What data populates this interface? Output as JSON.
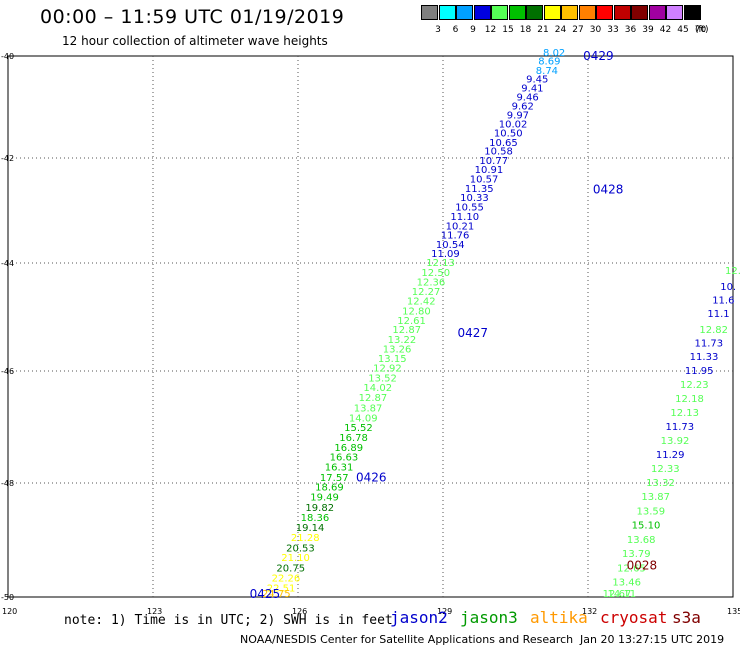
{
  "title": "00:00 – 11:59 UTC 01/19/2019",
  "subtitle": "12 hour collection of altimeter wave heights",
  "legend": {
    "unit": "(ft)",
    "bins": [
      {
        "label": "3",
        "color": "#7f7f7f"
      },
      {
        "label": "6",
        "color": "#00ffff"
      },
      {
        "label": "9",
        "color": "#00a0ff"
      },
      {
        "label": "12",
        "color": "#0000e0"
      },
      {
        "label": "15",
        "color": "#55ff55"
      },
      {
        "label": "18",
        "color": "#00c000"
      },
      {
        "label": "21",
        "color": "#007000"
      },
      {
        "label": "24",
        "color": "#ffff00"
      },
      {
        "label": "27",
        "color": "#ffc000"
      },
      {
        "label": "30",
        "color": "#ff8000"
      },
      {
        "label": "33",
        "color": "#ff0000"
      },
      {
        "label": "36",
        "color": "#c00000"
      },
      {
        "label": "39",
        "color": "#800000"
      },
      {
        "label": "42",
        "color": "#a000a0"
      },
      {
        "label": "45",
        "color": "#d080ff"
      },
      {
        "label": "70",
        "color": "#000000"
      }
    ]
  },
  "axes": {
    "lat_labels": [
      "-40",
      "-42",
      "-44",
      "-46",
      "-48",
      "-50"
    ],
    "lon_labels": [
      "120",
      "123",
      "126",
      "129",
      "132",
      "135"
    ]
  },
  "footer": {
    "note": "note: 1) Time is in UTC; 2) SWH is in feet",
    "satellites": [
      {
        "name": "jason2",
        "color": "#0000cc"
      },
      {
        "name": "jason3",
        "color": "#009900"
      },
      {
        "name": "altika",
        "color": "#ff9900"
      },
      {
        "name": "cryosat",
        "color": "#cc0000"
      },
      {
        "name": "s3a",
        "color": "#800000"
      }
    ],
    "credit": "NOAA/NESDIS Center for Satellite Applications and Research",
    "datestamp": "Jan 20 13:27:15 UTC 2019"
  },
  "map_data": {
    "time_labels": [
      {
        "text": "0429",
        "lon": 131.9,
        "lat": -40.0,
        "color": "#0000cc"
      },
      {
        "text": "0428",
        "lon": 132.1,
        "lat": -42.6,
        "color": "#0000cc"
      },
      {
        "text": "0427",
        "lon": 129.3,
        "lat": -45.3,
        "color": "#0000cc"
      },
      {
        "text": "0426",
        "lon": 127.2,
        "lat": -47.9,
        "color": "#0000cc"
      },
      {
        "text": "0425",
        "lon": 125.0,
        "lat": -49.95,
        "color": "#0000cc"
      },
      {
        "text": "0028",
        "lon": 132.8,
        "lat": -49.45,
        "color": "#800000"
      }
    ],
    "track1": [
      {
        "v": "8.02",
        "lon": 131.3,
        "lat": -40.0,
        "color": "#00a0ff"
      },
      {
        "v": "8.69",
        "lon": 131.2,
        "lat": -40.17,
        "color": "#00a0ff"
      },
      {
        "v": "8.74",
        "lon": 131.15,
        "lat": -40.35,
        "color": "#00a0ff"
      },
      {
        "v": "9.45",
        "lon": 130.95,
        "lat": -40.52,
        "color": "#0000cc"
      },
      {
        "v": "9.41",
        "lon": 130.85,
        "lat": -40.7,
        "color": "#0000cc"
      },
      {
        "v": "9.46",
        "lon": 130.75,
        "lat": -40.87,
        "color": "#0000cc"
      },
      {
        "v": "9.62",
        "lon": 130.65,
        "lat": -41.05,
        "color": "#0000cc"
      },
      {
        "v": "9.97",
        "lon": 130.55,
        "lat": -41.23,
        "color": "#0000cc"
      },
      {
        "v": "10.02",
        "lon": 130.45,
        "lat": -41.4,
        "color": "#0000cc"
      },
      {
        "v": "10.50",
        "lon": 130.35,
        "lat": -41.58,
        "color": "#0000cc"
      },
      {
        "v": "10.65",
        "lon": 130.25,
        "lat": -41.76,
        "color": "#0000cc"
      },
      {
        "v": "10.58",
        "lon": 130.15,
        "lat": -41.93,
        "color": "#0000cc"
      },
      {
        "v": "10.77",
        "lon": 130.05,
        "lat": -42.11,
        "color": "#0000cc"
      },
      {
        "v": "10.91",
        "lon": 129.95,
        "lat": -42.29,
        "color": "#0000cc"
      },
      {
        "v": "10.57",
        "lon": 129.85,
        "lat": -42.47,
        "color": "#0000cc"
      },
      {
        "v": "11.35",
        "lon": 129.75,
        "lat": -42.65,
        "color": "#0000cc"
      },
      {
        "v": "10.33",
        "lon": 129.65,
        "lat": -42.82,
        "color": "#0000cc"
      },
      {
        "v": "10.55",
        "lon": 129.55,
        "lat": -43.0,
        "color": "#0000cc"
      },
      {
        "v": "11.10",
        "lon": 129.45,
        "lat": -43.18,
        "color": "#0000cc"
      },
      {
        "v": "10.21",
        "lon": 129.35,
        "lat": -43.36,
        "color": "#0000cc"
      },
      {
        "v": "11.76",
        "lon": 129.25,
        "lat": -43.53,
        "color": "#0000cc"
      },
      {
        "v": "10.54",
        "lon": 129.15,
        "lat": -43.71,
        "color": "#0000cc"
      },
      {
        "v": "11.09",
        "lon": 129.05,
        "lat": -43.89,
        "color": "#0000cc"
      },
      {
        "v": "12.13",
        "lon": 128.95,
        "lat": -44.06,
        "color": "#55ff55"
      },
      {
        "v": "12.50",
        "lon": 128.85,
        "lat": -44.24,
        "color": "#55ff55"
      },
      {
        "v": "12.36",
        "lon": 128.75,
        "lat": -44.42,
        "color": "#55ff55"
      },
      {
        "v": "12.27",
        "lon": 128.65,
        "lat": -44.59,
        "color": "#55ff55"
      },
      {
        "v": "12.42",
        "lon": 128.55,
        "lat": -44.77,
        "color": "#55ff55"
      },
      {
        "v": "12.80",
        "lon": 128.45,
        "lat": -44.95,
        "color": "#55ff55"
      },
      {
        "v": "12.61",
        "lon": 128.35,
        "lat": -45.13,
        "color": "#55ff55"
      },
      {
        "v": "12.87",
        "lon": 128.25,
        "lat": -45.3,
        "color": "#55ff55"
      },
      {
        "v": "13.22",
        "lon": 128.15,
        "lat": -45.48,
        "color": "#55ff55"
      },
      {
        "v": "13.26",
        "lon": 128.05,
        "lat": -45.66,
        "color": "#55ff55"
      },
      {
        "v": "13.15",
        "lon": 127.95,
        "lat": -45.83,
        "color": "#55ff55"
      },
      {
        "v": "12.92",
        "lon": 127.85,
        "lat": -46.01,
        "color": "#55ff55"
      },
      {
        "v": "13.52",
        "lon": 127.75,
        "lat": -46.19,
        "color": "#55ff55"
      },
      {
        "v": "14.02",
        "lon": 127.65,
        "lat": -46.36,
        "color": "#55ff55"
      },
      {
        "v": "12.87",
        "lon": 127.55,
        "lat": -46.54,
        "color": "#55ff55"
      },
      {
        "v": "13.87",
        "lon": 127.45,
        "lat": -46.72,
        "color": "#55ff55"
      },
      {
        "v": "14.09",
        "lon": 127.35,
        "lat": -46.9,
        "color": "#55ff55"
      },
      {
        "v": "15.52",
        "lon": 127.25,
        "lat": -47.07,
        "color": "#00c000"
      },
      {
        "v": "16.78",
        "lon": 127.15,
        "lat": -47.25,
        "color": "#00c000"
      },
      {
        "v": "16.89",
        "lon": 127.05,
        "lat": -47.43,
        "color": "#00c000"
      },
      {
        "v": "16.63",
        "lon": 126.95,
        "lat": -47.6,
        "color": "#00c000"
      },
      {
        "v": "16.31",
        "lon": 126.85,
        "lat": -47.78,
        "color": "#00c000"
      },
      {
        "v": "17.57",
        "lon": 126.75,
        "lat": -47.96,
        "color": "#00c000"
      },
      {
        "v": "18.69",
        "lon": 126.65,
        "lat": -48.13,
        "color": "#00c000"
      },
      {
        "v": "19.49",
        "lon": 126.55,
        "lat": -48.31,
        "color": "#00c000"
      },
      {
        "v": "19.82",
        "lon": 126.45,
        "lat": -48.49,
        "color": "#007000"
      },
      {
        "v": "18.36",
        "lon": 126.35,
        "lat": -48.67,
        "color": "#00c000"
      },
      {
        "v": "19.14",
        "lon": 126.25,
        "lat": -48.84,
        "color": "#007000"
      },
      {
        "v": "21.28",
        "lon": 126.15,
        "lat": -49.02,
        "color": "#ffff00"
      },
      {
        "v": "20.53",
        "lon": 126.05,
        "lat": -49.2,
        "color": "#007000"
      },
      {
        "v": "21.10",
        "lon": 125.95,
        "lat": -49.37,
        "color": "#ffff00"
      },
      {
        "v": "20.75",
        "lon": 125.85,
        "lat": -49.55,
        "color": "#007000"
      },
      {
        "v": "22.26",
        "lon": 125.75,
        "lat": -49.73,
        "color": "#ffff00"
      },
      {
        "v": "22.51",
        "lon": 125.65,
        "lat": -49.9,
        "color": "#ffff00"
      },
      {
        "v": "24.75",
        "lon": 125.55,
        "lat": -50.08,
        "color": "#ffc000"
      }
    ],
    "track2": [
      {
        "v": "12.",
        "lon": 135.0,
        "lat": -44.2,
        "color": "#55ff55"
      },
      {
        "v": "10.",
        "lon": 134.9,
        "lat": -44.5,
        "color": "#0000cc"
      },
      {
        "v": "11.6",
        "lon": 134.8,
        "lat": -44.75,
        "color": "#0000cc"
      },
      {
        "v": "11.1",
        "lon": 134.7,
        "lat": -45.0,
        "color": "#0000cc"
      },
      {
        "v": "12.82",
        "lon": 134.6,
        "lat": -45.3,
        "color": "#55ff55"
      },
      {
        "v": "11.73",
        "lon": 134.5,
        "lat": -45.55,
        "color": "#0000cc"
      },
      {
        "v": "11.33",
        "lon": 134.4,
        "lat": -45.8,
        "color": "#0000cc"
      },
      {
        "v": "11.95",
        "lon": 134.3,
        "lat": -46.05,
        "color": "#0000cc"
      },
      {
        "v": "12.23",
        "lon": 134.2,
        "lat": -46.3,
        "color": "#55ff55"
      },
      {
        "v": "12.18",
        "lon": 134.1,
        "lat": -46.55,
        "color": "#55ff55"
      },
      {
        "v": "12.13",
        "lon": 134.0,
        "lat": -46.8,
        "color": "#55ff55"
      },
      {
        "v": "11.73",
        "lon": 133.9,
        "lat": -47.05,
        "color": "#0000cc"
      },
      {
        "v": "13.92",
        "lon": 133.8,
        "lat": -47.3,
        "color": "#55ff55"
      },
      {
        "v": "11.29",
        "lon": 133.7,
        "lat": -47.55,
        "color": "#0000cc"
      },
      {
        "v": "12.33",
        "lon": 133.6,
        "lat": -47.8,
        "color": "#55ff55"
      },
      {
        "v": "13.32",
        "lon": 133.5,
        "lat": -48.05,
        "color": "#55ff55"
      },
      {
        "v": "13.87",
        "lon": 133.4,
        "lat": -48.3,
        "color": "#55ff55"
      },
      {
        "v": "13.59",
        "lon": 133.3,
        "lat": -48.55,
        "color": "#55ff55"
      },
      {
        "v": "15.10",
        "lon": 133.2,
        "lat": -48.8,
        "color": "#00c000"
      },
      {
        "v": "13.68",
        "lon": 133.1,
        "lat": -49.05,
        "color": "#55ff55"
      },
      {
        "v": "13.79",
        "lon": 133.0,
        "lat": -49.3,
        "color": "#55ff55"
      },
      {
        "v": "12.65",
        "lon": 132.9,
        "lat": -49.55,
        "color": "#55ff55"
      },
      {
        "v": "13.46",
        "lon": 132.8,
        "lat": -49.8,
        "color": "#55ff55"
      },
      {
        "v": "14.11",
        "lon": 132.7,
        "lat": -50.05,
        "color": "#55ff55"
      },
      {
        "v": "12.67",
        "lon": 132.6,
        "lat": -50.3,
        "color": "#55ff55"
      }
    ]
  }
}
